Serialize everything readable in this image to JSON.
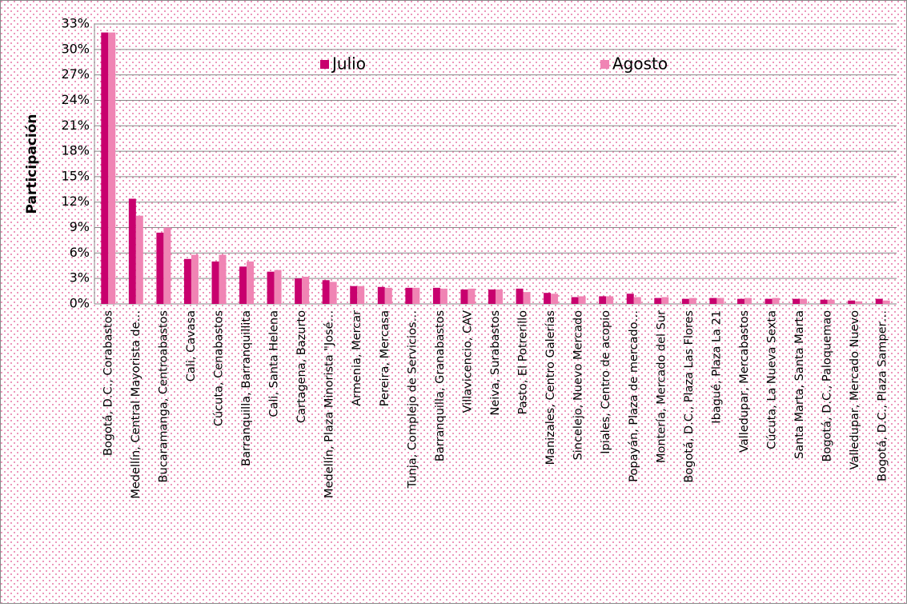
{
  "chart_data": {
    "type": "bar",
    "y_label": "Participación",
    "categories": [
      "Bogotá, D.C., Corabastos",
      "Medellín, Central Mayorista de…",
      "Bucaramanga, Centroabastos",
      "Cali, Cavasa",
      "Cúcuta, Cenabastos",
      "Barranquilla, Barranquillita",
      "Cali, Santa Helena",
      "Cartagena, Bazurto",
      "Medellín, Plaza Minorista \"José…",
      "Armenia, Mercar",
      "Pereira, Mercasa",
      "Tunja, Complejo de Servicios…",
      "Barranquilla, Granabastos",
      "Villavicencio, CAV",
      "Neiva, Surabastos",
      "Pasto, El Potrerillo",
      "Manizales, Centro Galerías",
      "Sincelejo, Nuevo Mercado",
      "Ipiales, Centro de acopio",
      "Popayán, Plaza de mercado…",
      "Montería, Mercado del Sur",
      "Bogotá, D.C., Plaza Las Flores",
      "Ibagué, Plaza La 21",
      "Valledupar, Mercabastos",
      "Cúcuta, La Nueva Sexta",
      "Santa Marta, Santa Marta",
      "Bogotá, D.C., Paloquemao",
      "Valledupar, Mercado Nuevo",
      "Bogotá, D.C., Plaza Samper…"
    ],
    "series": [
      {
        "name": "Julio",
        "color": "#c8006e",
        "values": [
          32,
          12.4,
          8.4,
          5.3,
          5.0,
          4.4,
          3.8,
          3.0,
          2.8,
          2.1,
          2.0,
          1.9,
          1.9,
          1.7,
          1.7,
          1.8,
          1.3,
          0.8,
          0.9,
          1.2,
          0.7,
          0.6,
          0.7,
          0.6,
          0.6,
          0.6,
          0.5,
          0.4,
          0.6
        ]
      },
      {
        "name": "Agosto",
        "color": "#f084b4",
        "values": [
          32,
          10.4,
          9.0,
          5.8,
          5.8,
          5.0,
          4.0,
          3.2,
          2.6,
          2.1,
          1.9,
          1.9,
          1.8,
          1.8,
          1.7,
          1.4,
          1.2,
          0.9,
          0.9,
          0.8,
          0.8,
          0.7,
          0.7,
          0.7,
          0.7,
          0.6,
          0.5,
          0.3,
          0.4
        ]
      }
    ],
    "ylim": [
      0,
      33
    ],
    "yticks": [
      {
        "value": 0,
        "label": "0%"
      },
      {
        "value": 3,
        "label": "3%"
      },
      {
        "value": 6,
        "label": "6%"
      },
      {
        "value": 9,
        "label": "9%"
      },
      {
        "value": 12,
        "label": "12%"
      },
      {
        "value": 15,
        "label": "15%"
      },
      {
        "value": 18,
        "label": "18%"
      },
      {
        "value": 21,
        "label": "21%"
      },
      {
        "value": 24,
        "label": "24%"
      },
      {
        "value": 27,
        "label": "27%"
      },
      {
        "value": 30,
        "label": "30%"
      },
      {
        "value": 33,
        "label": "33%"
      }
    ],
    "grid": true
  }
}
